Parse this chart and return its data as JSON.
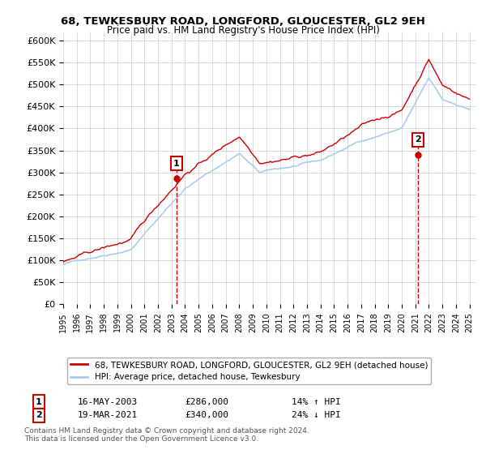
{
  "title": "68, TEWKESBURY ROAD, LONGFORD, GLOUCESTER, GL2 9EH",
  "subtitle": "Price paid vs. HM Land Registry's House Price Index (HPI)",
  "ylabel_ticks": [
    "£0",
    "£50K",
    "£100K",
    "£150K",
    "£200K",
    "£250K",
    "£300K",
    "£350K",
    "£400K",
    "£450K",
    "£500K",
    "£550K",
    "£600K"
  ],
  "ytick_values": [
    0,
    50000,
    100000,
    150000,
    200000,
    250000,
    300000,
    350000,
    400000,
    450000,
    500000,
    550000,
    600000
  ],
  "ylim": [
    0,
    620000
  ],
  "xlim_start": 1995.0,
  "xlim_end": 2025.5,
  "sale1_x": 2003.37,
  "sale1_y": 286000,
  "sale1_label": "1",
  "sale1_date": "16-MAY-2003",
  "sale1_price": "£286,000",
  "sale1_hpi": "14% ↑ HPI",
  "sale2_x": 2021.21,
  "sale2_y": 340000,
  "sale2_label": "2",
  "sale2_date": "19-MAR-2021",
  "sale2_price": "£340,000",
  "sale2_hpi": "24% ↓ HPI",
  "line1_color": "#cc0000",
  "line2_color": "#aaccee",
  "marker1_color": "#cc0000",
  "marker2_color": "#cc0000",
  "background_color": "#ffffff",
  "grid_color": "#cccccc",
  "legend_line1": "68, TEWKESBURY ROAD, LONGFORD, GLOUCESTER, GL2 9EH (detached house)",
  "legend_line2": "HPI: Average price, detached house, Tewkesbury",
  "footnote": "Contains HM Land Registry data © Crown copyright and database right 2024.\nThis data is licensed under the Open Government Licence v3.0.",
  "box1_color": "#cc0000"
}
